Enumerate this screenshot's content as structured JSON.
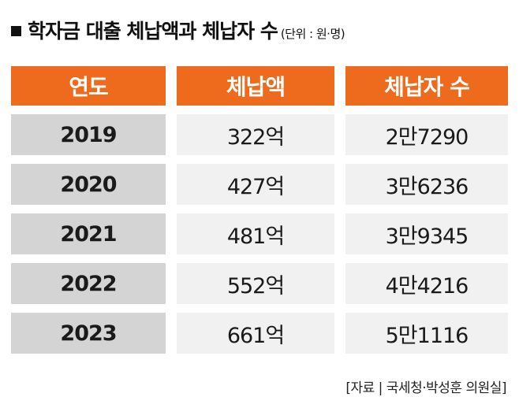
{
  "title": "학자금 대출 체납액과 체납자 수",
  "unit": "(단위 : 원·명)",
  "source": "[자료 | 국세청·박성훈 의원실]",
  "colors": {
    "header": "#ee6a1c",
    "year_cell": "#d4d4d4",
    "value_cell": "#f1f1f1"
  },
  "chart_data": {
    "type": "table",
    "columns": [
      "연도",
      "체납액",
      "체납자 수"
    ],
    "rows": [
      {
        "year": "2019",
        "amount": "322억",
        "count": "2만7290"
      },
      {
        "year": "2020",
        "amount": "427억",
        "count": "3만6236"
      },
      {
        "year": "2021",
        "amount": "481억",
        "count": "3만9345"
      },
      {
        "year": "2022",
        "amount": "552억",
        "count": "4만4216"
      },
      {
        "year": "2023",
        "amount": "661억",
        "count": "5만1116"
      }
    ]
  }
}
